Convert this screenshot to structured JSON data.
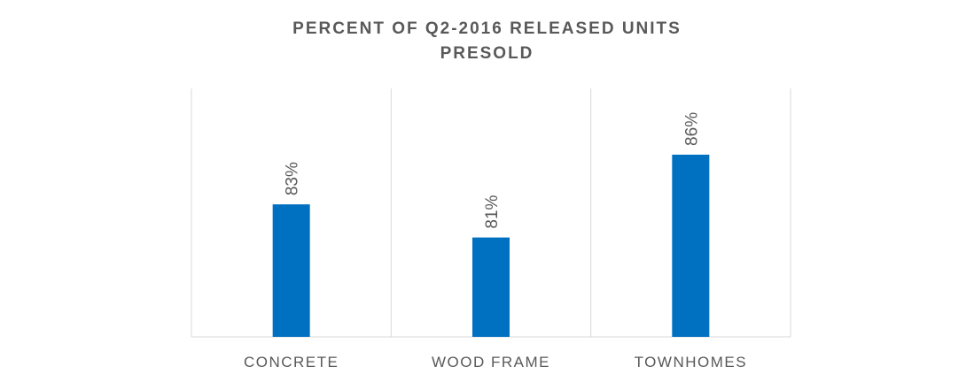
{
  "chart_data": {
    "type": "bar",
    "title_lines": [
      "PERCENT OF Q2-2016  RELEASED UNITS",
      "PRESOLD"
    ],
    "categories": [
      "CONCRETE",
      "WOOD FRAME",
      "TOWNHOMES"
    ],
    "values": [
      83,
      81,
      86
    ],
    "data_labels": [
      "83%",
      "81%",
      "86%"
    ],
    "ylim": [
      75,
      90
    ],
    "value_axis_visible": false,
    "grid": "vertical category separators",
    "legend": "none",
    "bar_color": "#0070C0",
    "grid_color": "#D9D9D9",
    "text_color": "#595959"
  }
}
